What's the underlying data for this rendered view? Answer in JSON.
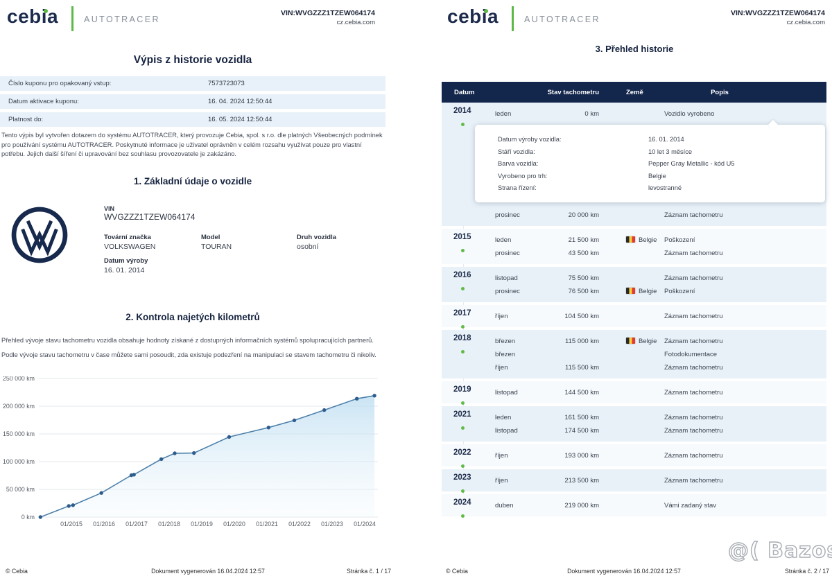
{
  "colors": {
    "navy": "#16294e",
    "accent_green": "#5cb847",
    "table_header": "#13264c",
    "row_tint": "#e9f1f8",
    "row_lite": "#f6fafd",
    "chart_line": "#4d80ab",
    "chart_point": "#2e5d8c"
  },
  "header": {
    "brand": "cebia",
    "product": "AUTOTRACER",
    "vin_line": "VIN:WVGZZZ1TZEW064174",
    "site": "cz.cebia.com"
  },
  "page1": {
    "title": "Výpis z historie vozidla",
    "coupon": {
      "rows": [
        {
          "label": "Číslo kuponu pro opakovaný vstup:",
          "value": "7573723073"
        },
        {
          "label": "Datum aktivace kuponu:",
          "value": "16. 04. 2024 12:50:44"
        },
        {
          "label": "Platnost do:",
          "value": "16. 05. 2024 12:50:44"
        }
      ]
    },
    "disclaimer": "Tento výpis byl vytvořen dotazem do systému AUTOTRACER, který provozuje Cebia, spol. s r.o. dle platných Všeobecných podmínek pro používání systému AUTOTRACER. Poskytnuté informace je uživatel oprávněn v celém rozsahu využívat pouze pro vlastní potřebu. Jejich další šíření či upravování bez souhlasu provozovatele je zakázáno.",
    "section1": {
      "title": "1. Základní údaje o vozidle",
      "vin_label": "VIN",
      "vin": "WVGZZZ1TZEW064174",
      "fields": [
        {
          "label": "Tovární značka",
          "value": "VOLKSWAGEN"
        },
        {
          "label": "Model",
          "value": "TOURAN"
        },
        {
          "label": "Druh vozidla",
          "value": "osobní"
        },
        {
          "label": "Datum výroby",
          "value": "16. 01. 2014"
        }
      ]
    },
    "section2": {
      "title": "2. Kontrola najetých kilometrů",
      "body": "Přehled vývoje stavu tachometru vozidla obsahuje hodnoty získané z dostupných informačních systémů spolupracujících partnerů. Podle vývoje stavu tachometru v čase můžete sami posoudit, zda existuje podezření na manipulaci se stavem tachometru či nikoliv."
    },
    "footer": {
      "copyright": "© Cebia",
      "generated": "Dokument vygenerován 16.04.2024 12:57",
      "page": "Stránka č. 1 / 17"
    }
  },
  "page2": {
    "title": "3. Přehled historie",
    "table_columns": [
      "Datum",
      "Stav tachometru",
      "Země",
      "Popis"
    ],
    "years": [
      {
        "year": "2014",
        "tint": true,
        "tooltip_after_row": 0,
        "rows": [
          {
            "month": "leden",
            "odo": "0 km",
            "country": "",
            "desc": "Vozidlo vyrobeno"
          },
          {
            "month": "prosinec",
            "odo": "20 000 km",
            "country": "",
            "desc": "Záznam tachometru"
          }
        ]
      },
      {
        "year": "2015",
        "tint": false,
        "rows": [
          {
            "month": "leden",
            "odo": "21 500 km",
            "country": "Belgie",
            "desc": "Poškození"
          },
          {
            "month": "prosinec",
            "odo": "43 500 km",
            "country": "",
            "desc": "Záznam tachometru"
          }
        ]
      },
      {
        "year": "2016",
        "tint": true,
        "rows": [
          {
            "month": "listopad",
            "odo": "75 500 km",
            "country": "",
            "desc": "Záznam tachometru"
          },
          {
            "month": "prosinec",
            "odo": "76 500 km",
            "country": "Belgie",
            "desc": "Poškození"
          }
        ]
      },
      {
        "year": "2017",
        "tint": false,
        "rows": [
          {
            "month": "říjen",
            "odo": "104 500 km",
            "country": "",
            "desc": "Záznam tachometru"
          }
        ]
      },
      {
        "year": "2018",
        "tint": true,
        "rows": [
          {
            "month": "březen",
            "odo": "115 000 km",
            "country": "Belgie",
            "desc": "Záznam tachometru"
          },
          {
            "month": "březen",
            "odo": "",
            "country": "",
            "desc": "Fotodokumentace"
          },
          {
            "month": "říjen",
            "odo": "115 500 km",
            "country": "",
            "desc": "Záznam tachometru"
          }
        ]
      },
      {
        "year": "2019",
        "tint": false,
        "rows": [
          {
            "month": "listopad",
            "odo": "144 500 km",
            "country": "",
            "desc": "Záznam tachometru"
          }
        ]
      },
      {
        "year": "2021",
        "tint": true,
        "rows": [
          {
            "month": "leden",
            "odo": "161 500 km",
            "country": "",
            "desc": "Záznam tachometru"
          },
          {
            "month": "listopad",
            "odo": "174 500 km",
            "country": "",
            "desc": "Záznam tachometru"
          }
        ]
      },
      {
        "year": "2022",
        "tint": false,
        "rows": [
          {
            "month": "říjen",
            "odo": "193 000 km",
            "country": "",
            "desc": "Záznam tachometru"
          }
        ]
      },
      {
        "year": "2023",
        "tint": true,
        "rows": [
          {
            "month": "říjen",
            "odo": "213 500 km",
            "country": "",
            "desc": "Záznam tachometru"
          }
        ]
      },
      {
        "year": "2024",
        "tint": false,
        "rows": [
          {
            "month": "duben",
            "odo": "219 000 km",
            "country": "",
            "desc": "Vámi zadaný stav"
          }
        ]
      }
    ],
    "tooltip": {
      "rows": [
        {
          "label": "Datum výroby vozidla:",
          "value": "16. 01. 2014"
        },
        {
          "label": "Stáří vozidla:",
          "value": "10 let 3 měsíce"
        },
        {
          "label": "Barva vozidla:",
          "value": "Pepper Gray Metallic - kód U5"
        },
        {
          "label": "Vyrobeno pro trh:",
          "value": "Belgie"
        },
        {
          "label": "Strana řízení:",
          "value": "levostranné"
        }
      ]
    },
    "footer": {
      "copyright": "© Cebia",
      "generated": "Dokument vygenerován 16.04.2024 12:57",
      "page": "Stránka č. 2 / 17"
    },
    "watermark": "@( Bazos.cz"
  },
  "chart_data": {
    "type": "line",
    "title": "",
    "xlabel": "",
    "ylabel": "",
    "ylim": [
      0,
      250000
    ],
    "xlim": [
      2014,
      2024.45
    ],
    "grid": "horizontal",
    "legend": "none",
    "y_ticks": [
      {
        "value": 0,
        "label": "0 km"
      },
      {
        "value": 50000,
        "label": "50 000 km"
      },
      {
        "value": 100000,
        "label": "100 000 km"
      },
      {
        "value": 150000,
        "label": "150 000 km"
      },
      {
        "value": 200000,
        "label": "200 000 km"
      },
      {
        "value": 250000,
        "label": "250 000 km"
      }
    ],
    "x_ticks": [
      {
        "value": 2015,
        "label": "01/2015"
      },
      {
        "value": 2016,
        "label": "01/2016"
      },
      {
        "value": 2017,
        "label": "01/2017"
      },
      {
        "value": 2018,
        "label": "01/2018"
      },
      {
        "value": 2019,
        "label": "01/2019"
      },
      {
        "value": 2020,
        "label": "01/2020"
      },
      {
        "value": 2021,
        "label": "01/2021"
      },
      {
        "value": 2022,
        "label": "01/2022"
      },
      {
        "value": 2023,
        "label": "01/2023"
      },
      {
        "value": 2024,
        "label": "01/2024"
      }
    ],
    "series": [
      {
        "name": "Stav tachometru",
        "points": [
          {
            "x": 2014.05,
            "y": 0,
            "date": "01/2014"
          },
          {
            "x": 2014.92,
            "y": 20000,
            "date": "12/2014"
          },
          {
            "x": 2015.05,
            "y": 21500,
            "date": "01/2015"
          },
          {
            "x": 2015.92,
            "y": 43500,
            "date": "12/2015"
          },
          {
            "x": 2016.84,
            "y": 75500,
            "date": "11/2016"
          },
          {
            "x": 2016.92,
            "y": 76500,
            "date": "12/2016"
          },
          {
            "x": 2017.76,
            "y": 104500,
            "date": "10/2017"
          },
          {
            "x": 2018.17,
            "y": 115000,
            "date": "03/2018"
          },
          {
            "x": 2018.76,
            "y": 115500,
            "date": "10/2018"
          },
          {
            "x": 2019.84,
            "y": 144500,
            "date": "11/2019"
          },
          {
            "x": 2021.05,
            "y": 161500,
            "date": "01/2021"
          },
          {
            "x": 2021.84,
            "y": 174500,
            "date": "11/2021"
          },
          {
            "x": 2022.76,
            "y": 193000,
            "date": "10/2022"
          },
          {
            "x": 2023.76,
            "y": 213500,
            "date": "10/2023"
          },
          {
            "x": 2024.3,
            "y": 219000,
            "date": "04/2024"
          }
        ]
      }
    ]
  }
}
